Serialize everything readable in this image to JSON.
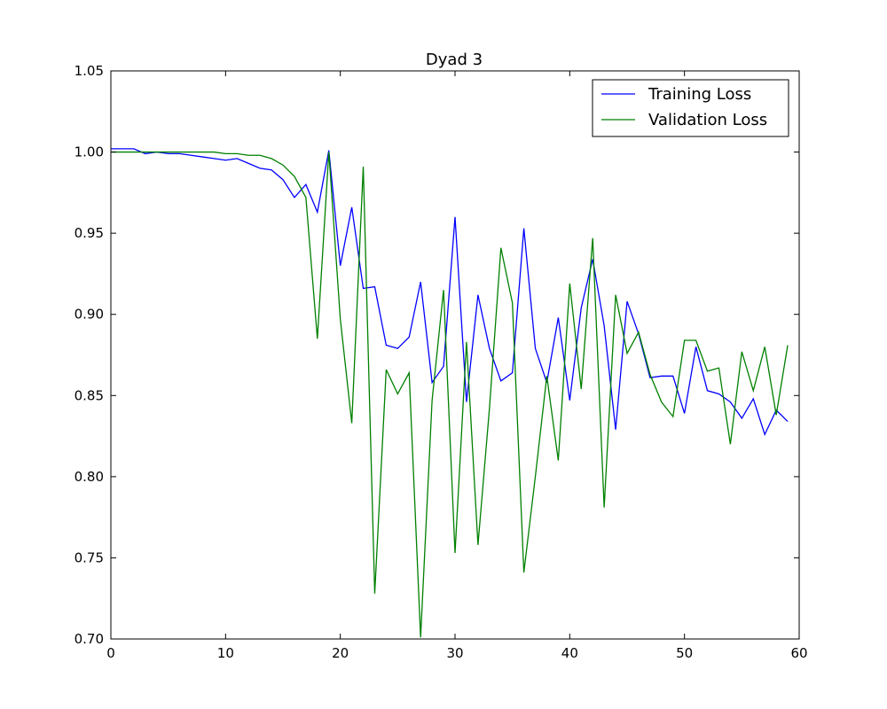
{
  "chart_data": {
    "type": "line",
    "title": "Dyad 3",
    "xlabel": "",
    "ylabel": "",
    "xlim": [
      0,
      60
    ],
    "ylim": [
      0.7,
      1.05
    ],
    "x_ticks": [
      "0",
      "10",
      "20",
      "30",
      "40",
      "50",
      "60"
    ],
    "y_ticks": [
      "0.70",
      "0.75",
      "0.80",
      "0.85",
      "0.90",
      "0.95",
      "1.00",
      "1.05"
    ],
    "grid": false,
    "legend_position": "top-right",
    "x": [
      0,
      1,
      2,
      3,
      4,
      5,
      6,
      7,
      8,
      9,
      10,
      11,
      12,
      13,
      14,
      15,
      16,
      17,
      18,
      19,
      20,
      21,
      22,
      23,
      24,
      25,
      26,
      27,
      28,
      29,
      30,
      31,
      32,
      33,
      34,
      35,
      36,
      37,
      38,
      39,
      40,
      41,
      42,
      43,
      44,
      45,
      46,
      47,
      48,
      49,
      50,
      51,
      52,
      53,
      54,
      55,
      56,
      57,
      58,
      59
    ],
    "series": [
      {
        "name": "Training Loss",
        "color": "#0000ff",
        "values": [
          1.002,
          1.002,
          1.002,
          0.999,
          1.0,
          0.999,
          0.999,
          0.998,
          0.997,
          0.996,
          0.995,
          0.996,
          0.993,
          0.99,
          0.989,
          0.983,
          0.972,
          0.98,
          0.963,
          1.001,
          0.93,
          0.966,
          0.916,
          0.917,
          0.881,
          0.879,
          0.886,
          0.92,
          0.858,
          0.868,
          0.96,
          0.846,
          0.912,
          0.879,
          0.859,
          0.864,
          0.953,
          0.879,
          0.858,
          0.898,
          0.847,
          0.904,
          0.934,
          0.893,
          0.829,
          0.908,
          0.888,
          0.861,
          0.862,
          0.862,
          0.839,
          0.88,
          0.853,
          0.851,
          0.846,
          0.836,
          0.848,
          0.826,
          0.841,
          0.834
        ]
      },
      {
        "name": "Validation Loss",
        "color": "#008000",
        "values": [
          1.0,
          1.0,
          1.0,
          1.0,
          1.0,
          1.0,
          1.0,
          1.0,
          1.0,
          1.0,
          0.999,
          0.999,
          0.998,
          0.998,
          0.996,
          0.992,
          0.985,
          0.972,
          0.885,
          1.0,
          0.897,
          0.833,
          0.991,
          0.728,
          0.866,
          0.851,
          0.864,
          0.701,
          0.847,
          0.915,
          0.753,
          0.883,
          0.758,
          0.842,
          0.941,
          0.907,
          0.741,
          0.8,
          0.862,
          0.81,
          0.919,
          0.854,
          0.947,
          0.781,
          0.912,
          0.876,
          0.889,
          0.863,
          0.846,
          0.837,
          0.884,
          0.884,
          0.865,
          0.867,
          0.82,
          0.877,
          0.853,
          0.88,
          0.838,
          0.881
        ]
      }
    ]
  }
}
